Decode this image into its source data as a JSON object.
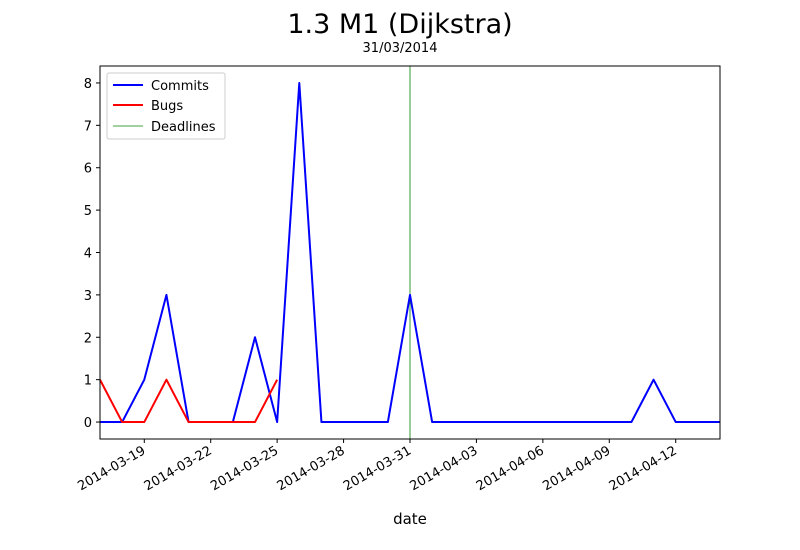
{
  "chart_data": {
    "type": "line",
    "title": "1.3 M1 (Dijkstra)",
    "subtitle": "31/03/2014",
    "xlabel": "date",
    "ylabel": "",
    "xlim": [
      "2014-03-17",
      "2014-04-14"
    ],
    "ylim": [
      -0.4,
      8.4
    ],
    "xticks": [
      "2014-03-19",
      "2014-03-22",
      "2014-03-25",
      "2014-03-28",
      "2014-03-31",
      "2014-04-03",
      "2014-04-06",
      "2014-04-09",
      "2014-04-12"
    ],
    "yticks": [
      0,
      1,
      2,
      3,
      4,
      5,
      6,
      7,
      8
    ],
    "grid": false,
    "legend_position": "top-left",
    "series": [
      {
        "name": "Commits",
        "color": "#0000ff",
        "x": [
          "2014-03-17",
          "2014-03-18",
          "2014-03-19",
          "2014-03-20",
          "2014-03-21",
          "2014-03-22",
          "2014-03-23",
          "2014-03-24",
          "2014-03-25",
          "2014-03-26",
          "2014-03-27",
          "2014-03-28",
          "2014-03-29",
          "2014-03-30",
          "2014-03-31",
          "2014-04-01",
          "2014-04-02",
          "2014-04-03",
          "2014-04-04",
          "2014-04-05",
          "2014-04-06",
          "2014-04-07",
          "2014-04-08",
          "2014-04-09",
          "2014-04-10",
          "2014-04-11",
          "2014-04-12",
          "2014-04-13",
          "2014-04-14"
        ],
        "y": [
          0,
          0,
          1,
          3,
          0,
          0,
          0,
          2,
          0,
          8,
          0,
          0,
          0,
          0,
          3,
          0,
          0,
          0,
          0,
          0,
          0,
          0,
          0,
          0,
          0,
          1,
          0,
          0,
          0
        ]
      },
      {
        "name": "Bugs",
        "color": "#ff0000",
        "x": [
          "2014-03-17",
          "2014-03-18",
          "2014-03-19",
          "2014-03-20",
          "2014-03-21",
          "2014-03-22",
          "2014-03-23",
          "2014-03-24",
          "2014-03-25"
        ],
        "y": [
          1,
          0,
          0,
          1,
          0,
          0,
          0,
          0,
          1
        ]
      }
    ],
    "deadlines": {
      "name": "Deadlines",
      "color": "#008000",
      "x": [
        "2014-03-31"
      ]
    }
  }
}
